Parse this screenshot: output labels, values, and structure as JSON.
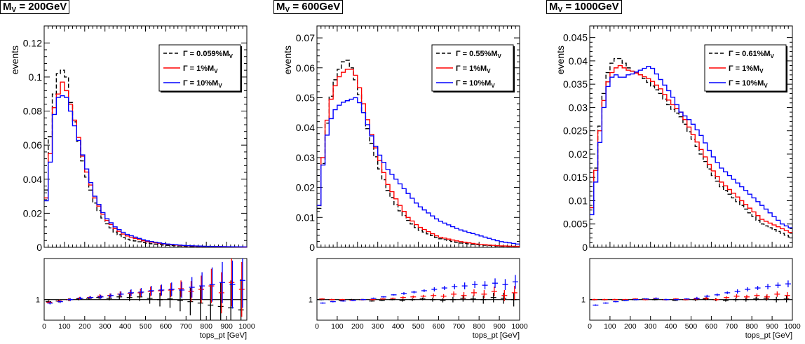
{
  "colors": {
    "black": "#000000",
    "red": "#ff0000",
    "blue": "#0000ff"
  },
  "legend_labels": {
    "gamma_symbol": "Γ",
    "sub_v": "V",
    "series_1pct": "Γ = 1%M",
    "series_10pct": "Γ = 10%M"
  },
  "chart_data": [
    {
      "type": "line",
      "title": "M",
      "title_sub": "V",
      "title_value": " = 200GeV",
      "ylabel": "events",
      "xlabel": "tops_pt [GeV]",
      "xlim": [
        0,
        1000
      ],
      "ylim": [
        0,
        0.13
      ],
      "yticks": [
        "0",
        "0.02",
        "0.04",
        "0.06",
        "0.08",
        "0.1",
        "0.12"
      ],
      "ytick_values": [
        0,
        0.02,
        0.04,
        0.06,
        0.08,
        0.1,
        0.12
      ],
      "xticks": [
        "0",
        "100",
        "200",
        "300",
        "400",
        "500",
        "600",
        "700",
        "800",
        "900",
        "1000"
      ],
      "legend_position": "top-right",
      "ratio_ytick": "1",
      "series": [
        {
          "name": "Γ = 0.059%M",
          "name_sub": "V",
          "color": "#000000",
          "style": "dashed",
          "x": [
            0,
            30,
            50,
            70,
            90,
            110,
            130,
            160,
            200,
            250,
            300,
            350,
            400,
            500,
            600,
            700,
            800,
            900,
            1000
          ],
          "y": [
            0.018,
            0.065,
            0.09,
            0.102,
            0.104,
            0.1,
            0.085,
            0.068,
            0.045,
            0.026,
            0.015,
            0.009,
            0.005,
            0.0025,
            0.0012,
            0.0006,
            0.0003,
            0.0002,
            0.0001
          ]
        },
        {
          "name": "Γ = 1%M",
          "name_sub": "V",
          "color": "#ff0000",
          "style": "solid",
          "x": [
            0,
            30,
            50,
            70,
            90,
            110,
            130,
            160,
            200,
            250,
            300,
            350,
            400,
            500,
            600,
            700,
            800,
            900,
            1000
          ],
          "y": [
            0.016,
            0.055,
            0.082,
            0.09,
            0.097,
            0.092,
            0.084,
            0.07,
            0.048,
            0.029,
            0.017,
            0.011,
            0.007,
            0.0035,
            0.0018,
            0.0009,
            0.0005,
            0.0003,
            0.0002
          ]
        },
        {
          "name": "Γ = 10%M",
          "name_sub": "V",
          "color": "#0000ff",
          "style": "solid",
          "x": [
            0,
            30,
            50,
            70,
            90,
            110,
            130,
            160,
            200,
            250,
            300,
            350,
            400,
            500,
            600,
            700,
            800,
            900,
            1000
          ],
          "y": [
            0.016,
            0.05,
            0.078,
            0.088,
            0.089,
            0.088,
            0.08,
            0.067,
            0.05,
            0.03,
            0.018,
            0.012,
            0.008,
            0.004,
            0.002,
            0.001,
            0.0006,
            0.0004,
            0.0002
          ]
        }
      ],
      "ratio": [
        {
          "color": "#000000",
          "values": [
            0.97,
            0.98,
            1.0,
            1.01,
            1.02,
            1.03,
            1.02,
            1.04,
            1.03,
            1.04,
            1.02,
            1.0,
            1.01,
            0.99,
            0.97,
            0.95,
            0.92,
            0.9,
            0.88,
            0.85
          ],
          "errors": [
            0.02,
            0.02,
            0.02,
            0.02,
            0.02,
            0.02,
            0.03,
            0.04,
            0.05,
            0.06,
            0.08,
            0.1,
            0.13,
            0.16,
            0.2,
            0.25,
            0.3,
            0.35,
            0.4,
            0.45
          ]
        },
        {
          "color": "#ff0000",
          "values": [
            0.96,
            0.98,
            1.0,
            1.02,
            1.03,
            1.05,
            1.06,
            1.08,
            1.09,
            1.1,
            1.12,
            1.13,
            1.14,
            1.16,
            1.12,
            1.15,
            1.2,
            1.1,
            1.25,
            1.15
          ],
          "errors": [
            0.02,
            0.02,
            0.02,
            0.02,
            0.02,
            0.03,
            0.03,
            0.04,
            0.05,
            0.06,
            0.07,
            0.08,
            0.1,
            0.12,
            0.15,
            0.2,
            0.25,
            0.3,
            0.35,
            0.4
          ]
        },
        {
          "color": "#0000ff",
          "values": [
            0.95,
            0.97,
            1.0,
            1.02,
            1.03,
            1.04,
            1.06,
            1.08,
            1.1,
            1.11,
            1.13,
            1.14,
            1.15,
            1.14,
            1.18,
            1.2,
            1.22,
            1.25,
            1.22,
            1.28
          ],
          "errors": [
            0.02,
            0.02,
            0.02,
            0.02,
            0.02,
            0.03,
            0.03,
            0.04,
            0.05,
            0.06,
            0.07,
            0.08,
            0.1,
            0.12,
            0.15,
            0.2,
            0.25,
            0.3,
            0.35,
            0.4
          ]
        }
      ]
    },
    {
      "type": "line",
      "title": "M",
      "title_sub": "V",
      "title_value": " = 600GeV",
      "ylabel": "events",
      "xlabel": "tops_pt [GeV]",
      "xlim": [
        0,
        1000
      ],
      "ylim": [
        0,
        0.074
      ],
      "yticks": [
        "0",
        "0.01",
        "0.02",
        "0.03",
        "0.04",
        "0.05",
        "0.06",
        "0.07"
      ],
      "ytick_values": [
        0,
        0.01,
        0.02,
        0.03,
        0.04,
        0.05,
        0.06,
        0.07
      ],
      "xticks": [
        "0",
        "100",
        "200",
        "300",
        "400",
        "500",
        "600",
        "700",
        "800",
        "900",
        "1000"
      ],
      "legend_position": "top-right",
      "ratio_ytick": "1",
      "series": [
        {
          "name": "Γ = 0.55%M",
          "name_sub": "V",
          "color": "#000000",
          "style": "dashed",
          "x": [
            0,
            20,
            40,
            60,
            80,
            100,
            120,
            140,
            160,
            180,
            200,
            230,
            260,
            300,
            350,
            400,
            450,
            500,
            600,
            700,
            800,
            900,
            1000
          ],
          "y": [
            0.006,
            0.02,
            0.036,
            0.047,
            0.054,
            0.058,
            0.061,
            0.063,
            0.062,
            0.058,
            0.054,
            0.045,
            0.037,
            0.028,
            0.019,
            0.013,
            0.009,
            0.006,
            0.003,
            0.0015,
            0.0008,
            0.0004,
            0.0002
          ]
        },
        {
          "name": "Γ = 1%M",
          "name_sub": "V",
          "color": "#ff0000",
          "style": "solid",
          "x": [
            0,
            20,
            40,
            60,
            80,
            100,
            120,
            140,
            160,
            180,
            200,
            230,
            260,
            300,
            350,
            400,
            450,
            500,
            600,
            700,
            800,
            900,
            1000
          ],
          "y": [
            0.006,
            0.022,
            0.038,
            0.047,
            0.052,
            0.056,
            0.058,
            0.059,
            0.06,
            0.059,
            0.056,
            0.048,
            0.04,
            0.031,
            0.021,
            0.015,
            0.01,
            0.007,
            0.0035,
            0.002,
            0.001,
            0.0005,
            0.0003
          ]
        },
        {
          "name": "Γ = 10%M",
          "name_sub": "V",
          "color": "#0000ff",
          "style": "solid",
          "x": [
            0,
            20,
            40,
            60,
            80,
            100,
            120,
            140,
            160,
            180,
            200,
            230,
            260,
            300,
            350,
            400,
            450,
            500,
            600,
            700,
            800,
            900,
            1000
          ],
          "y": [
            0.007,
            0.021,
            0.034,
            0.041,
            0.045,
            0.047,
            0.048,
            0.049,
            0.049,
            0.05,
            0.05,
            0.045,
            0.039,
            0.032,
            0.026,
            0.022,
            0.018,
            0.014,
            0.009,
            0.006,
            0.004,
            0.002,
            0.001
          ]
        }
      ],
      "ratio": [
        {
          "color": "#000000",
          "values": [
            1.0,
            1.0,
            0.99,
            1.0,
            1.0,
            0.98,
            0.99,
            1.0,
            0.99,
            1.0,
            1.01,
            1.0,
            0.99,
            1.0,
            1.02,
            1.01,
            1.0,
            1.03,
            1.02,
            1.0
          ],
          "errors": [
            0.01,
            0.01,
            0.01,
            0.01,
            0.01,
            0.01,
            0.01,
            0.01,
            0.02,
            0.02,
            0.02,
            0.03,
            0.03,
            0.04,
            0.05,
            0.05,
            0.06,
            0.07,
            0.08,
            0.1
          ]
        },
        {
          "color": "#ff0000",
          "values": [
            1.01,
            1.0,
            1.0,
            0.99,
            1.0,
            1.0,
            1.01,
            1.02,
            1.03,
            1.04,
            1.05,
            1.06,
            1.05,
            1.08,
            1.06,
            1.1,
            1.08,
            1.12,
            1.06,
            1.1
          ],
          "errors": [
            0.01,
            0.01,
            0.01,
            0.01,
            0.01,
            0.01,
            0.01,
            0.01,
            0.02,
            0.02,
            0.02,
            0.03,
            0.03,
            0.04,
            0.05,
            0.05,
            0.06,
            0.07,
            0.08,
            0.1
          ]
        },
        {
          "color": "#0000ff",
          "values": [
            0.95,
            0.97,
            0.98,
            0.99,
            1.0,
            1.02,
            1.04,
            1.07,
            1.09,
            1.11,
            1.13,
            1.15,
            1.17,
            1.19,
            1.2,
            1.22,
            1.21,
            1.24,
            1.22,
            1.26
          ],
          "errors": [
            0.01,
            0.01,
            0.01,
            0.01,
            0.01,
            0.01,
            0.01,
            0.01,
            0.02,
            0.02,
            0.02,
            0.03,
            0.03,
            0.04,
            0.05,
            0.05,
            0.06,
            0.07,
            0.08,
            0.1
          ]
        }
      ]
    },
    {
      "type": "line",
      "title": "M",
      "title_sub": "V",
      "title_value": " = 1000GeV",
      "ylabel": "events",
      "xlabel": "tops_pt [GeV]",
      "xlim": [
        0,
        1000
      ],
      "ylim": [
        0,
        0.0475
      ],
      "yticks": [
        "0",
        "0.005",
        "0.01",
        "0.015",
        "0.02",
        "0.025",
        "0.03",
        "0.035",
        "0.04",
        "0.045"
      ],
      "ytick_values": [
        0,
        0.005,
        0.01,
        0.015,
        0.02,
        0.025,
        0.03,
        0.035,
        0.04,
        0.045
      ],
      "xticks": [
        "0",
        "100",
        "200",
        "300",
        "400",
        "500",
        "600",
        "700",
        "800",
        "900",
        "1000"
      ],
      "legend_position": "top-right",
      "ratio_ytick": "1",
      "series": [
        {
          "name": "Γ = 0.61%M",
          "name_sub": "V",
          "color": "#000000",
          "style": "dashed",
          "x": [
            0,
            20,
            40,
            60,
            80,
            100,
            120,
            140,
            160,
            180,
            200,
            250,
            300,
            350,
            400,
            450,
            500,
            550,
            600,
            650,
            700,
            750,
            800,
            850,
            900,
            950,
            1000
          ],
          "y": [
            0.005,
            0.012,
            0.022,
            0.03,
            0.036,
            0.039,
            0.04,
            0.041,
            0.04,
            0.039,
            0.038,
            0.037,
            0.035,
            0.033,
            0.03,
            0.028,
            0.024,
            0.02,
            0.016,
            0.013,
            0.011,
            0.009,
            0.007,
            0.005,
            0.004,
            0.003,
            0.002
          ]
        },
        {
          "name": "Γ = 1%M",
          "name_sub": "V",
          "color": "#ff0000",
          "style": "solid",
          "x": [
            0,
            20,
            40,
            60,
            80,
            100,
            120,
            140,
            160,
            180,
            200,
            250,
            300,
            350,
            400,
            450,
            500,
            550,
            600,
            650,
            700,
            750,
            800,
            850,
            900,
            950,
            1000
          ],
          "y": [
            0.005,
            0.012,
            0.021,
            0.029,
            0.034,
            0.037,
            0.038,
            0.039,
            0.039,
            0.038,
            0.038,
            0.037,
            0.036,
            0.034,
            0.031,
            0.029,
            0.025,
            0.021,
            0.017,
            0.014,
            0.012,
            0.01,
            0.008,
            0.006,
            0.005,
            0.004,
            0.003
          ]
        },
        {
          "name": "Γ = 10%M",
          "name_sub": "V",
          "color": "#0000ff",
          "style": "solid",
          "x": [
            0,
            20,
            40,
            60,
            80,
            100,
            120,
            140,
            160,
            180,
            200,
            250,
            300,
            350,
            400,
            450,
            500,
            550,
            600,
            650,
            700,
            750,
            800,
            850,
            900,
            950,
            1000
          ],
          "y": [
            0.004,
            0.01,
            0.018,
            0.027,
            0.033,
            0.036,
            0.037,
            0.037,
            0.036,
            0.037,
            0.037,
            0.038,
            0.039,
            0.036,
            0.033,
            0.029,
            0.027,
            0.024,
            0.02,
            0.017,
            0.015,
            0.013,
            0.011,
            0.009,
            0.007,
            0.005,
            0.004
          ]
        }
      ],
      "ratio": [
        {
          "color": "#000000",
          "values": [
            1.0,
            1.0,
            1.0,
            0.99,
            1.0,
            1.01,
            1.0,
            1.0,
            0.99,
            1.0,
            1.0,
            1.01,
            1.0,
            0.99,
            1.0,
            1.0,
            1.01,
            1.02,
            1.0,
            1.01
          ],
          "errors": [
            0.01,
            0.01,
            0.01,
            0.01,
            0.01,
            0.01,
            0.01,
            0.01,
            0.01,
            0.01,
            0.02,
            0.02,
            0.02,
            0.02,
            0.03,
            0.03,
            0.03,
            0.04,
            0.04,
            0.05
          ]
        },
        {
          "color": "#ff0000",
          "values": [
            1.0,
            1.0,
            1.0,
            1.0,
            1.01,
            1.0,
            1.02,
            1.0,
            1.01,
            1.0,
            1.01,
            1.02,
            1.0,
            1.03,
            1.05,
            1.04,
            1.06,
            1.04,
            1.08,
            1.06
          ],
          "errors": [
            0.01,
            0.01,
            0.01,
            0.01,
            0.01,
            0.01,
            0.01,
            0.01,
            0.01,
            0.01,
            0.02,
            0.02,
            0.02,
            0.02,
            0.03,
            0.03,
            0.03,
            0.04,
            0.04,
            0.05
          ]
        },
        {
          "color": "#0000ff",
          "values": [
            0.92,
            0.95,
            0.97,
            0.99,
            1.0,
            1.01,
            1.02,
            1.0,
            1.0,
            1.01,
            1.02,
            1.05,
            1.07,
            1.1,
            1.12,
            1.15,
            1.17,
            1.19,
            1.21,
            1.23
          ],
          "errors": [
            0.01,
            0.01,
            0.01,
            0.01,
            0.01,
            0.01,
            0.01,
            0.01,
            0.01,
            0.01,
            0.02,
            0.02,
            0.02,
            0.02,
            0.03,
            0.03,
            0.03,
            0.04,
            0.04,
            0.05
          ]
        }
      ]
    }
  ]
}
